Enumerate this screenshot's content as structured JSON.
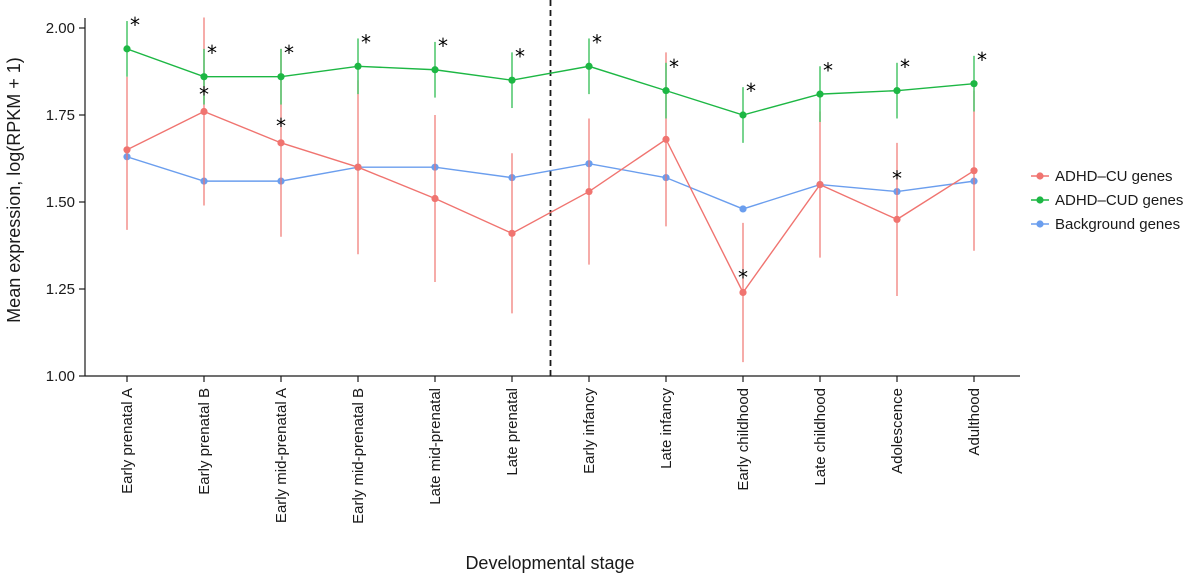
{
  "chart_data": {
    "type": "line",
    "xlabel": "Developmental stage",
    "ylabel": "Mean expression, log(RPKM + 1)",
    "ylim": [
      1.0,
      2.05
    ],
    "yticks": [
      1.0,
      1.25,
      1.5,
      1.75,
      2.0
    ],
    "ytick_labels": [
      "1.00",
      "1.25",
      "1.50",
      "1.75",
      "2.00"
    ],
    "categories": [
      "Early prenatal A",
      "Early prenatal B",
      "Early mid-prenatal A",
      "Early mid-prenatal B",
      "Late mid-prenatal",
      "Late prenatal",
      "Early infancy",
      "Late infancy",
      "Early childhood",
      "Late childhood",
      "Adolescence",
      "Adulthood"
    ],
    "divider_after_index": 5,
    "significance_marker": "*",
    "legend_position": "right",
    "series": [
      {
        "name": "ADHD–CU genes",
        "color": "#F07470",
        "values": [
          1.65,
          1.76,
          1.67,
          1.6,
          1.51,
          1.41,
          1.53,
          1.68,
          1.24,
          1.55,
          1.45,
          1.59
        ],
        "err_low": [
          1.42,
          1.49,
          1.4,
          1.35,
          1.27,
          1.18,
          1.32,
          1.43,
          1.04,
          1.34,
          1.23,
          1.36
        ],
        "err_high": [
          1.86,
          2.03,
          1.94,
          1.85,
          1.75,
          1.64,
          1.74,
          1.93,
          1.44,
          1.76,
          1.67,
          1.82
        ],
        "significant": [
          false,
          true,
          true,
          false,
          false,
          false,
          false,
          false,
          true,
          false,
          true,
          false
        ]
      },
      {
        "name": "ADHD–CUD genes",
        "color": "#1DB744",
        "values": [
          1.94,
          1.86,
          1.86,
          1.89,
          1.88,
          1.85,
          1.89,
          1.82,
          1.75,
          1.81,
          1.82,
          1.84
        ],
        "err_low": [
          1.86,
          1.78,
          1.78,
          1.81,
          1.8,
          1.77,
          1.81,
          1.74,
          1.67,
          1.73,
          1.74,
          1.76
        ],
        "err_high": [
          2.02,
          1.94,
          1.94,
          1.97,
          1.96,
          1.93,
          1.97,
          1.9,
          1.83,
          1.89,
          1.9,
          1.92
        ],
        "significant": [
          true,
          true,
          true,
          true,
          true,
          true,
          true,
          true,
          true,
          true,
          true,
          true
        ]
      },
      {
        "name": "Background genes",
        "color": "#6B9EEE",
        "values": [
          1.63,
          1.56,
          1.56,
          1.6,
          1.6,
          1.57,
          1.61,
          1.57,
          1.48,
          1.55,
          1.53,
          1.56
        ],
        "significant": [
          false,
          false,
          false,
          false,
          false,
          false,
          false,
          false,
          false,
          false,
          false,
          false
        ]
      }
    ]
  }
}
